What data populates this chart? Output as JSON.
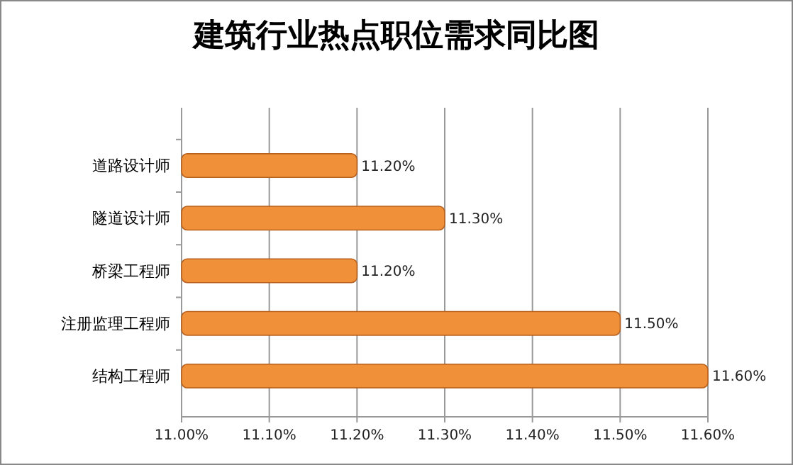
{
  "chart_data": {
    "type": "bar",
    "orientation": "horizontal",
    "title": "建筑行业热点职位需求同比图",
    "categories": [
      "道路设计师",
      "隧道设计师",
      "桥梁工程师",
      "注册监理工程师",
      "结构工程师"
    ],
    "values": [
      11.2,
      11.3,
      11.2,
      11.5,
      11.6
    ],
    "value_labels": [
      "11.20%",
      "11.30%",
      "11.20%",
      "11.50%",
      "11.60%"
    ],
    "color": "#f0913a",
    "xlim": [
      11.0,
      11.6
    ],
    "xticks": [
      {
        "value": 11.0,
        "label": "11.00%"
      },
      {
        "value": 11.1,
        "label": "11.10%"
      },
      {
        "value": 11.2,
        "label": "11.20%"
      },
      {
        "value": 11.3,
        "label": "11.30%"
      },
      {
        "value": 11.4,
        "label": "11.40%"
      },
      {
        "value": 11.5,
        "label": "11.50%"
      },
      {
        "value": 11.6,
        "label": "11.60%"
      }
    ],
    "grid": "x"
  }
}
